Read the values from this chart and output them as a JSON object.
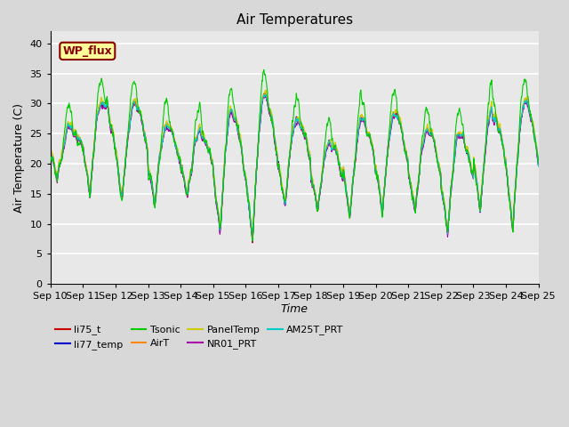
{
  "title": "Air Temperatures",
  "xlabel": "Time",
  "ylabel": "Air Temperature (C)",
  "ylim": [
    0,
    42
  ],
  "yticks": [
    0,
    5,
    10,
    15,
    20,
    25,
    30,
    35,
    40
  ],
  "xtick_labels": [
    "Sep 10",
    "Sep 11",
    "Sep 12",
    "Sep 13",
    "Sep 14",
    "Sep 15",
    "Sep 16",
    "Sep 17",
    "Sep 18",
    "Sep 19",
    "Sep 20",
    "Sep 21",
    "Sep 22",
    "Sep 23",
    "Sep 24",
    "Sep 25"
  ],
  "series_colors": {
    "li75_t": "#cc0000",
    "li77_temp": "#0000cc",
    "Tsonic": "#00cc00",
    "AirT": "#ff8800",
    "PanelTemp": "#cccc00",
    "NR01_PRT": "#aa00aa",
    "AM25T_PRT": "#00cccc"
  },
  "annotation_text": "WP_flux",
  "annotation_bg": "#ffff99",
  "annotation_border": "#880000",
  "plot_bg": "#e8e8e8",
  "grid_color": "#ffffff",
  "title_fontsize": 11,
  "axis_label_fontsize": 9,
  "tick_fontsize": 8,
  "legend_fontsize": 8,
  "n_points": 1440
}
